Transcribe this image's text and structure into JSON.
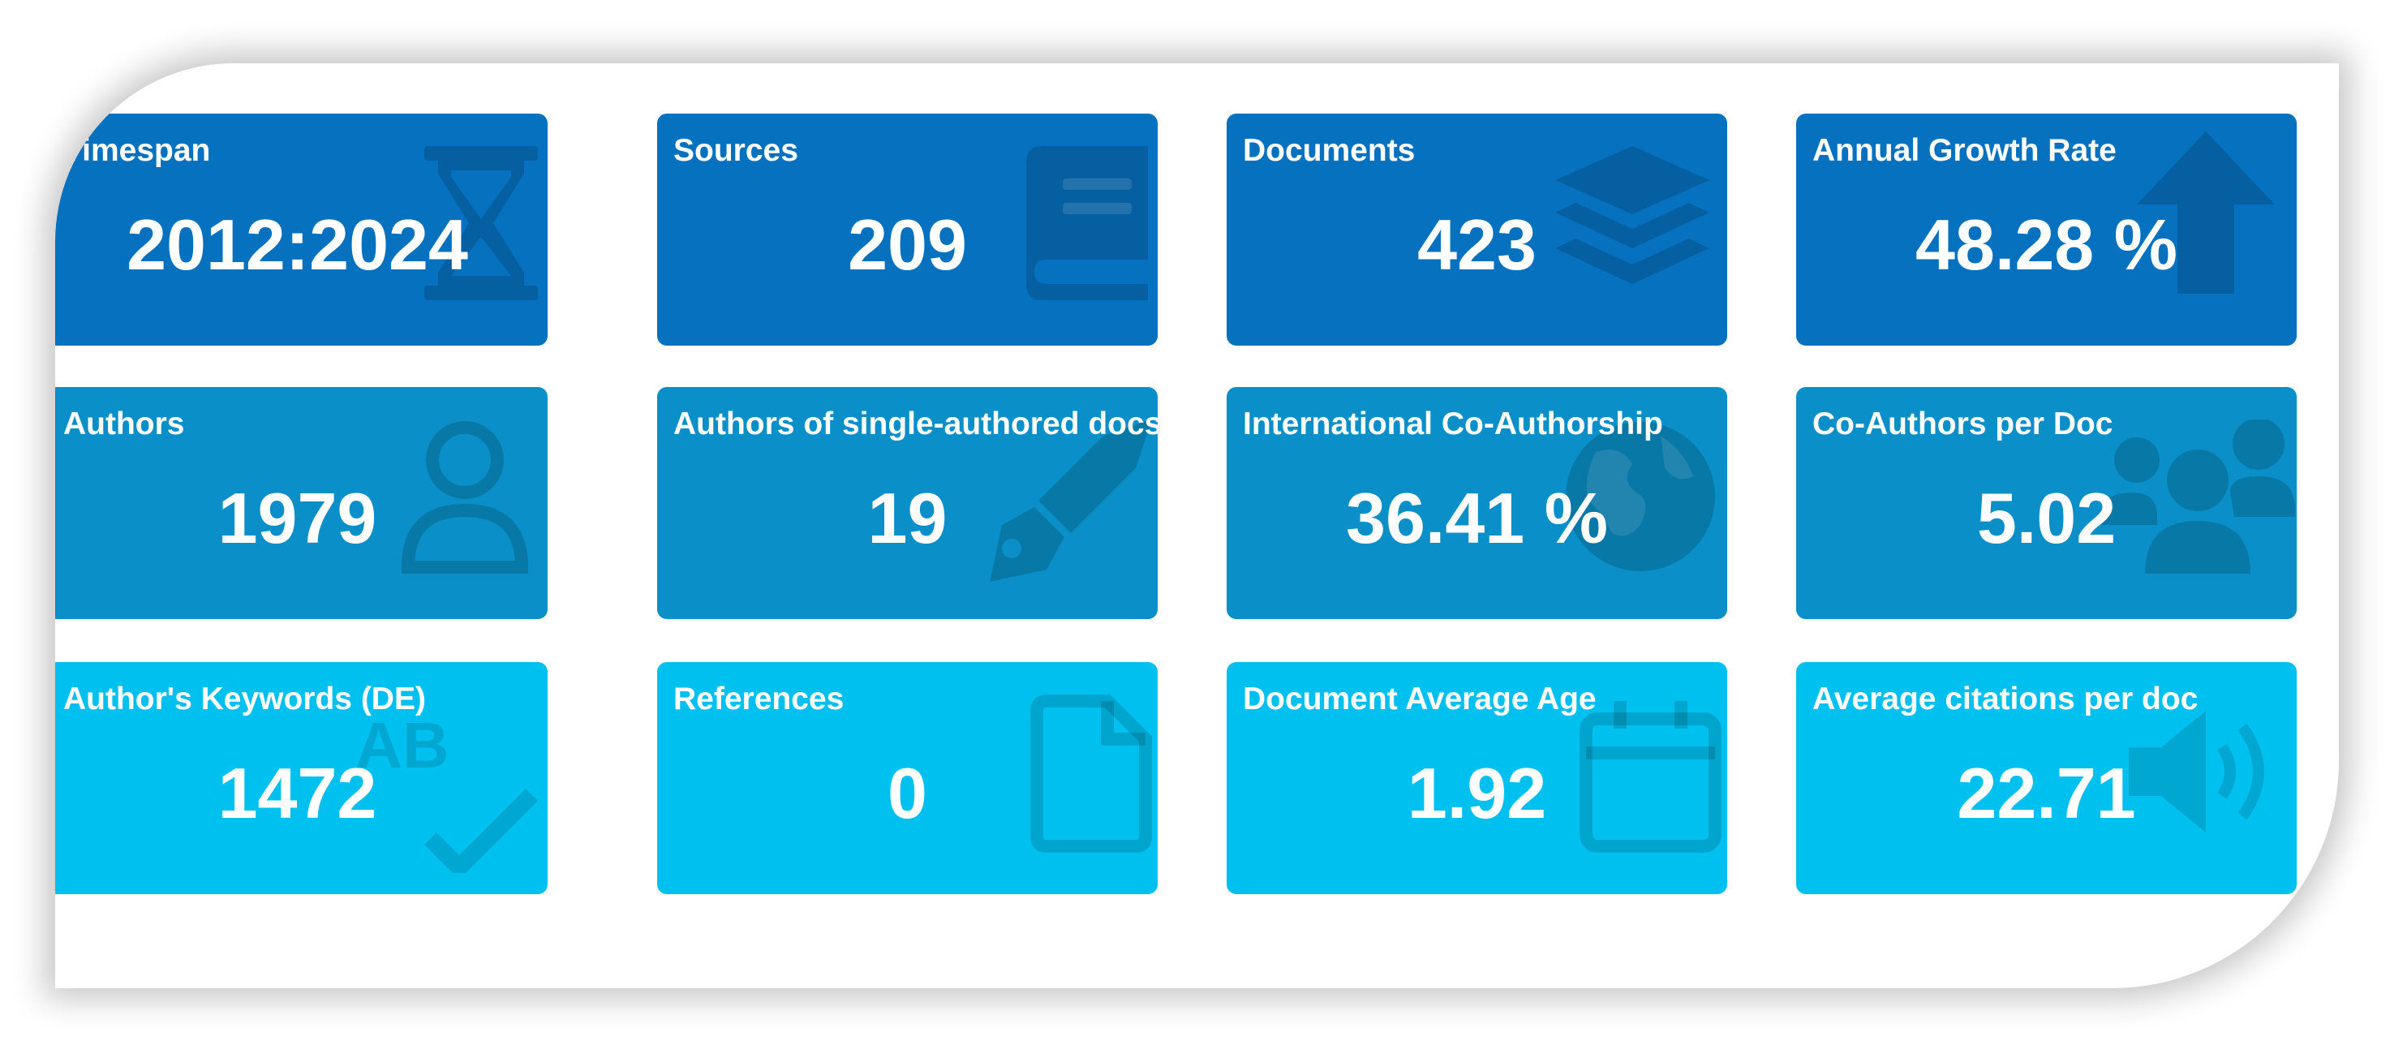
{
  "cards": [
    {
      "label": "Timespan",
      "value": "2012:2024",
      "icon": "hourglass-icon"
    },
    {
      "label": "Sources",
      "value": "209",
      "icon": "book-icon"
    },
    {
      "label": "Documents",
      "value": "423",
      "icon": "layers-icon"
    },
    {
      "label": "Annual Growth Rate",
      "value": "48.28 %",
      "icon": "arrow-up-icon"
    },
    {
      "label": "Authors",
      "value": "1979",
      "icon": "user-icon"
    },
    {
      "label": "Authors of single-authored docs",
      "value": "19",
      "icon": "pen-nib-icon"
    },
    {
      "label": "International Co-Authorship",
      "value": "36.41 %",
      "icon": "globe-icon"
    },
    {
      "label": "Co-Authors per Doc",
      "value": "5.02",
      "icon": "users-icon"
    },
    {
      "label": "Author's Keywords (DE)",
      "value": "1472",
      "icon": "spell-check-icon"
    },
    {
      "label": "References",
      "value": "0",
      "icon": "file-icon"
    },
    {
      "label": "Document Average Age",
      "value": "1.92",
      "icon": "calendar-icon"
    },
    {
      "label": "Average citations per doc",
      "value": "22.71",
      "icon": "volume-icon"
    }
  ],
  "colors": {
    "row1": "#0672bf",
    "row2": "#0a8fc8",
    "row3": "#00c0ef",
    "icon_overlay": "rgba(0,0,0,0.15)"
  }
}
